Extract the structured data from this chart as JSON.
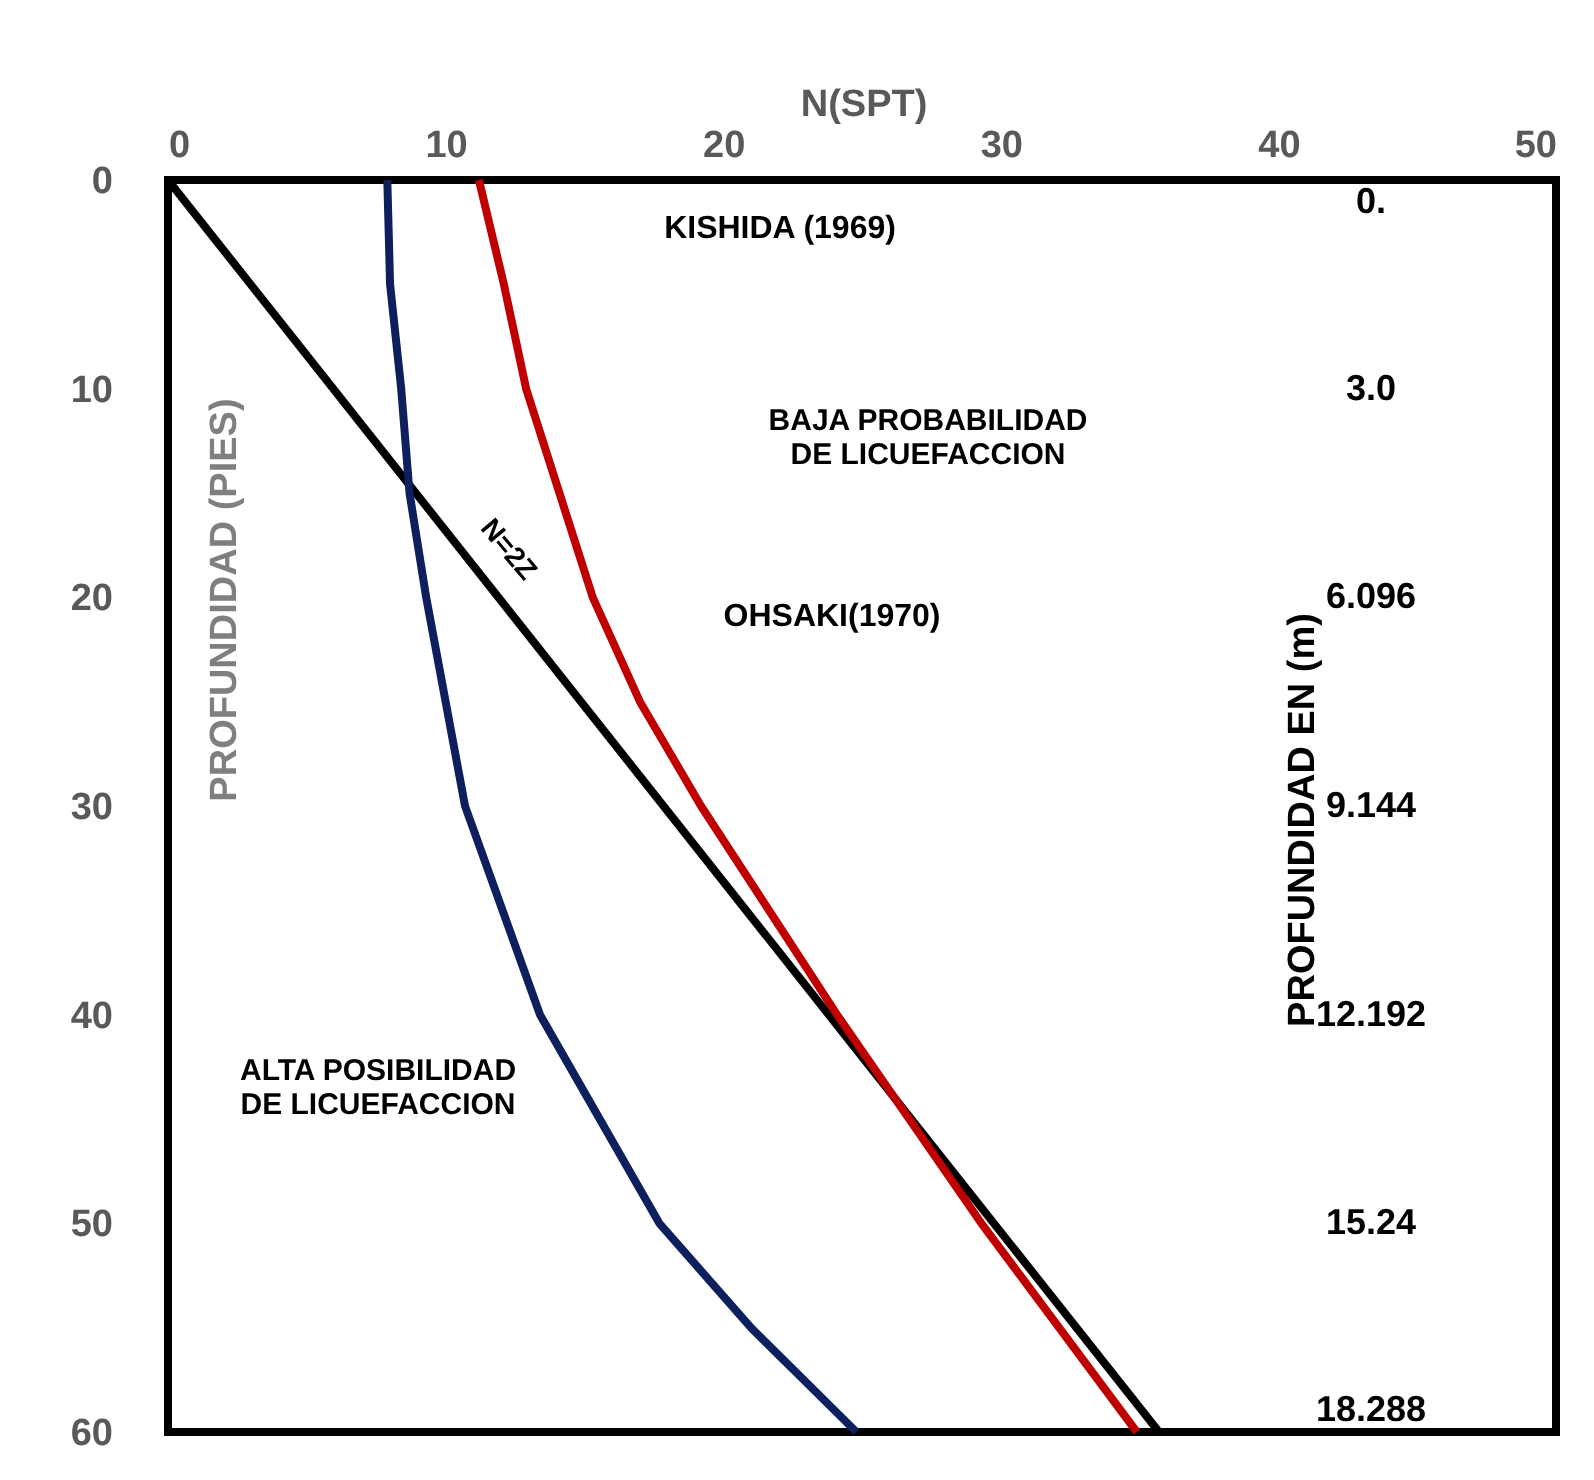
{
  "chart_data": {
    "type": "line",
    "xlabel": "N(SPT)",
    "ylabel": "PROFUNDIDAD (PIES)",
    "y2label": "PROFUNDIDAD EN  (m)",
    "xlim": [
      0,
      50
    ],
    "xticks": [
      0,
      10,
      20,
      30,
      40,
      50
    ],
    "ylim": [
      60,
      0
    ],
    "yticks": [
      0,
      10,
      20,
      30,
      40,
      50,
      60
    ],
    "y2lim": [
      18.288,
      0
    ],
    "y2ticks": [
      {
        "value": 0,
        "label": "0."
      },
      {
        "value": 3.048,
        "label": "3.0"
      },
      6.096,
      9.144,
      12.192,
      15.24,
      18.288
    ],
    "grid": false,
    "legend": false,
    "marker": "none",
    "line_style": "solid",
    "series": [
      {
        "color": "#000000",
        "x": [
          0,
          35.7
        ],
        "values": [
          0,
          60
        ]
      },
      {
        "color": "#0d1f5c",
        "x": [
          7.9,
          8.0,
          8.4,
          8.7,
          9.3,
          10.7,
          13.4,
          17.7,
          21.0,
          24.8
        ],
        "values": [
          0,
          5,
          10,
          15,
          20,
          30,
          40,
          50,
          55,
          60
        ]
      },
      {
        "color": "#c00000",
        "x": [
          11.2,
          12.1,
          12.9,
          14.1,
          15.3,
          17.0,
          19.2,
          24.1,
          29.3,
          34.9
        ],
        "values": [
          0,
          5,
          10,
          15,
          20,
          25,
          30,
          40,
          50,
          60
        ]
      }
    ],
    "annotations": [
      "N=2Z",
      "KISHIDA (1969)",
      "OHSAKI(1970)",
      "BAJA PROBABILIDAD DE LICUEFACCION",
      "ALTA POSIBILIDAD DE LICUEFACCION"
    ]
  }
}
